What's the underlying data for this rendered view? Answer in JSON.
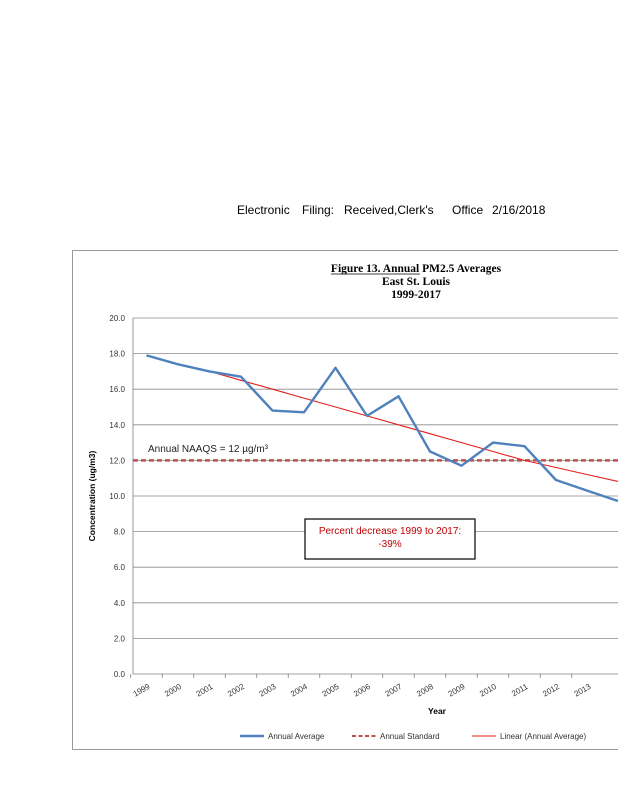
{
  "header": {
    "electronic": "Electronic",
    "filing": "Filing:",
    "received": "Received,Clerk's",
    "office": "Office",
    "date": "2/16/2018"
  },
  "chart_data": {
    "type": "line",
    "title_lines": [
      "Figure 13.  Annual PM2.5 Averages",
      "East St. Louis",
      "1999-2017"
    ],
    "xlabel": "Year",
    "ylabel": "Concentration (ug/m3)",
    "ylim": [
      0,
      20
    ],
    "yticks": [
      "0.0",
      "2.0",
      "4.0",
      "6.0",
      "8.0",
      "10.0",
      "12.0",
      "14.0",
      "16.0",
      "18.0",
      "20.0"
    ],
    "grid": true,
    "categories": [
      "1999",
      "2000",
      "2001",
      "2002",
      "2003",
      "2004",
      "2005",
      "2006",
      "2007",
      "2008",
      "2009",
      "2010",
      "2011",
      "2012",
      "2013"
    ],
    "series": [
      {
        "name": "Annual Average",
        "color": "#4f81bd",
        "style": "solid",
        "values": [
          17.9,
          17.4,
          17.0,
          16.7,
          14.8,
          14.7,
          17.2,
          14.5,
          15.6,
          12.5,
          11.7,
          13.0,
          12.8,
          10.9,
          10.3
        ]
      },
      {
        "name": "Annual Standard",
        "color": "#c0504d",
        "style": "dashed",
        "values": [
          12,
          12,
          12,
          12,
          12,
          12,
          12,
          12,
          12,
          12,
          12,
          12,
          12,
          12,
          12
        ]
      },
      {
        "name": "Linear (Annual Average)",
        "color": "#e0201b",
        "style": "trend",
        "values": [
          17.9,
          17.4,
          17.0,
          16.5,
          16.0,
          15.5,
          15.0,
          14.5,
          14.0,
          13.5,
          13.0,
          12.5,
          12.0,
          11.6,
          11.2
        ]
      }
    ],
    "annotations": {
      "naaqs": "Annual NAAQS = 12 µg/m³",
      "decrease_line1": "Percent decrease 1999 to 2017:",
      "decrease_line2": "-39%"
    },
    "legend_position": "bottom"
  }
}
